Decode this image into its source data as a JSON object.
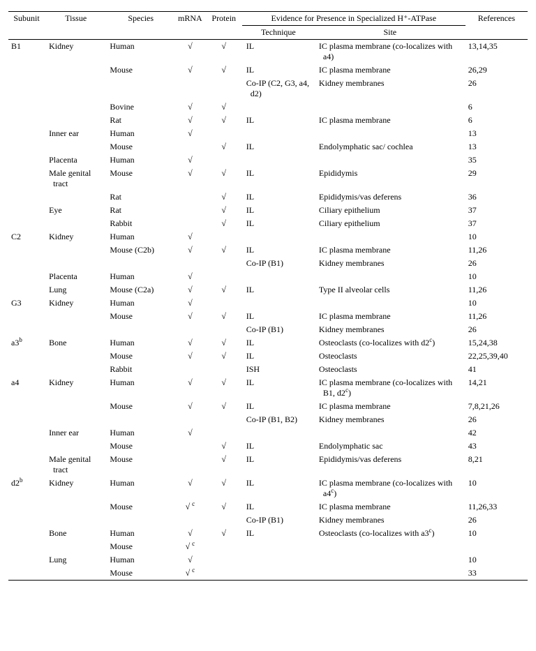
{
  "check": "√",
  "columns": {
    "c1": "Subunit",
    "c2": "Tissue",
    "c3": "Species",
    "c4": "mRNA",
    "c5": "Protein",
    "spanner": "Evidence for Presence in Specialized H⁺-ATPase",
    "c6": "Technique",
    "c7": "Site",
    "c8": "References"
  },
  "rows": [
    {
      "su": "B1",
      "ti": "Kidney",
      "sp": "Human",
      "m": "c",
      "p": "c",
      "tech": "IL",
      "site": "IC plasma membrane (co-localizes with a4)",
      "ref": "13,14,35"
    },
    {
      "su": "",
      "ti": "",
      "sp": "Mouse",
      "m": "c",
      "p": "c",
      "tech": "IL",
      "site": "IC plasma membrane",
      "ref": "26,29"
    },
    {
      "su": "",
      "ti": "",
      "sp": "",
      "m": "",
      "p": "",
      "tech": "Co-IP (C2, G3, a4, d2)",
      "site": "Kidney membranes",
      "ref": "26"
    },
    {
      "su": "",
      "ti": "",
      "sp": "Bovine",
      "m": "c",
      "p": "c",
      "tech": "",
      "site": "",
      "ref": "6"
    },
    {
      "su": "",
      "ti": "",
      "sp": "Rat",
      "m": "c",
      "p": "c",
      "tech": "IL",
      "site": "IC plasma membrane",
      "ref": "6"
    },
    {
      "su": "",
      "ti": "Inner ear",
      "sp": "Human",
      "m": "c",
      "p": "",
      "tech": "",
      "site": "",
      "ref": "13"
    },
    {
      "su": "",
      "ti": "",
      "sp": "Mouse",
      "m": "",
      "p": "c",
      "tech": "IL",
      "site": "Endolymphatic sac/ cochlea",
      "ref": "13"
    },
    {
      "su": "",
      "ti": "Placenta",
      "sp": "Human",
      "m": "c",
      "p": "",
      "tech": "",
      "site": "",
      "ref": "35"
    },
    {
      "su": "",
      "ti": "Male genital tract",
      "sp": "Mouse",
      "m": "c",
      "p": "c",
      "tech": "IL",
      "site": "Epididymis",
      "ref": "29"
    },
    {
      "su": "",
      "ti": "",
      "sp": "Rat",
      "m": "",
      "p": "c",
      "tech": "IL",
      "site": "Epididymis/vas deferens",
      "ref": "36"
    },
    {
      "su": "",
      "ti": "Eye",
      "sp": "Rat",
      "m": "",
      "p": "c",
      "tech": "IL",
      "site": "Ciliary epithelium",
      "ref": "37"
    },
    {
      "su": "",
      "ti": "",
      "sp": "Rabbit",
      "m": "",
      "p": "c",
      "tech": "IL",
      "site": "Ciliary epithelium",
      "ref": "37"
    },
    {
      "su": "C2",
      "ti": "Kidney",
      "sp": "Human",
      "m": "c",
      "p": "",
      "tech": "",
      "site": "",
      "ref": "10"
    },
    {
      "su": "",
      "ti": "",
      "sp": "Mouse (C2b)",
      "m": "c",
      "p": "c",
      "tech": "IL",
      "site": "IC plasma membrane",
      "ref": "11,26"
    },
    {
      "su": "",
      "ti": "",
      "sp": "",
      "m": "",
      "p": "",
      "tech": "Co-IP (B1)",
      "site": "Kidney membranes",
      "ref": "26"
    },
    {
      "su": "",
      "ti": "Placenta",
      "sp": "Human",
      "m": "c",
      "p": "",
      "tech": "",
      "site": "",
      "ref": "10"
    },
    {
      "su": "",
      "ti": "Lung",
      "sp": "Mouse (C2a)",
      "m": "c",
      "p": "c",
      "tech": "IL",
      "site": "Type II alveolar cells",
      "ref": "11,26"
    },
    {
      "su": "G3",
      "ti": "Kidney",
      "sp": "Human",
      "m": "c",
      "p": "",
      "tech": "",
      "site": "",
      "ref": "10"
    },
    {
      "su": "",
      "ti": "",
      "sp": "Mouse",
      "m": "c",
      "p": "c",
      "tech": "IL",
      "site": "IC plasma membrane",
      "ref": "11,26"
    },
    {
      "su": "",
      "ti": "",
      "sp": "",
      "m": "",
      "p": "",
      "tech": "Co-IP (B1)",
      "site": "Kidney membranes",
      "ref": "26"
    },
    {
      "su": "a3",
      "su_sup": "b",
      "ti": "Bone",
      "sp": "Human",
      "m": "c",
      "p": "c",
      "tech": "IL",
      "site": "Osteoclasts (co-localizes with d2",
      "site_sup": "c",
      "site_tail": ")",
      "ref": "15,24,38"
    },
    {
      "su": "",
      "ti": "",
      "sp": "Mouse",
      "m": "c",
      "p": "c",
      "tech": "IL",
      "site": "Osteoclasts",
      "ref": "22,25,39,40"
    },
    {
      "su": "",
      "ti": "",
      "sp": "Rabbit",
      "m": "",
      "p": "",
      "tech": "ISH",
      "site": "Osteoclasts",
      "ref": "41"
    },
    {
      "su": "a4",
      "ti": "Kidney",
      "sp": "Human",
      "m": "c",
      "p": "c",
      "tech": "IL",
      "site": "IC plasma membrane (co-localizes with B1, d2",
      "site_sup": "c",
      "site_tail": ")",
      "ref": "14,21"
    },
    {
      "su": "",
      "ti": "",
      "sp": "Mouse",
      "m": "c",
      "p": "c",
      "tech": "IL",
      "site": "IC plasma membrane",
      "ref": "7,8,21,26"
    },
    {
      "su": "",
      "ti": "",
      "sp": "",
      "m": "",
      "p": "",
      "tech": "Co-IP (B1, B2)",
      "site": "Kidney membranes",
      "ref": "26"
    },
    {
      "su": "",
      "ti": "Inner ear",
      "sp": "Human",
      "m": "c",
      "p": "",
      "tech": "",
      "site": "",
      "ref": "42"
    },
    {
      "su": "",
      "ti": "",
      "sp": "Mouse",
      "m": "",
      "p": "c",
      "tech": "IL",
      "site": "Endolymphatic sac",
      "ref": "43"
    },
    {
      "su": "",
      "ti": "Male genital tract",
      "sp": "Mouse",
      "m": "",
      "p": "c",
      "tech": "IL",
      "site": "Epididymis/vas deferens",
      "ref": "8,21"
    },
    {
      "su": "d2",
      "su_sup": "b",
      "ti": "Kidney",
      "sp": "Human",
      "m": "c",
      "p": "c",
      "tech": "IL",
      "site": "IC plasma membrane (co-localizes with a4",
      "site_sup": "c",
      "site_tail": ")",
      "ref": "10"
    },
    {
      "su": "",
      "ti": "",
      "sp": "Mouse",
      "m": "c",
      "m_sup": "c",
      "p": "c",
      "tech": "IL",
      "site": "IC plasma membrane",
      "ref": "11,26,33"
    },
    {
      "su": "",
      "ti": "",
      "sp": "",
      "m": "",
      "p": "",
      "tech": "Co-IP (B1)",
      "site": "Kidney membranes",
      "ref": "26"
    },
    {
      "su": "",
      "ti": "Bone",
      "sp": "Human",
      "m": "c",
      "p": "c",
      "tech": "IL",
      "site": "Osteoclasts (co-localizes with a3",
      "site_sup": "c",
      "site_tail": ")",
      "ref": "10"
    },
    {
      "su": "",
      "ti": "",
      "sp": "Mouse",
      "m": "c",
      "m_sup": "c",
      "p": "",
      "tech": "",
      "site": "",
      "ref": ""
    },
    {
      "su": "",
      "ti": "Lung",
      "sp": "Human",
      "m": "c",
      "p": "",
      "tech": "",
      "site": "",
      "ref": "10"
    },
    {
      "su": "",
      "ti": "",
      "sp": "Mouse",
      "m": "c",
      "m_sup": "c",
      "p": "",
      "tech": "",
      "site": "",
      "ref": "33"
    }
  ],
  "widths": {
    "c1": "7%",
    "c2": "12%",
    "c3": "13%",
    "c4": "6%",
    "c5": "7%",
    "c6": "14%",
    "c7": "29%",
    "c8": "12%"
  }
}
